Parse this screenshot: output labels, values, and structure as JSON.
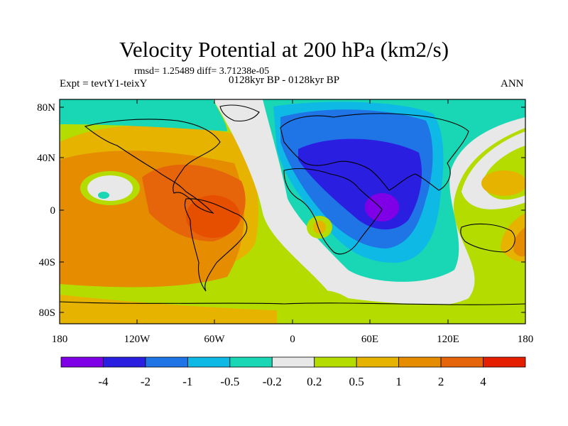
{
  "title": "Velocity Potential at 200 hPa (km2/s)",
  "stats": "rmsd= 1.25489 diff= 3.71238e-05",
  "expt": "Expt = tevtY1-teixY",
  "period": "0128kyr BP - 0128kyr BP",
  "season": "ANN",
  "map": {
    "lat_labels": [
      "80N",
      "40N",
      "0",
      "40S",
      "80S"
    ],
    "lon_labels": [
      "180",
      "120W",
      "60W",
      "0",
      "60E",
      "120E",
      "180"
    ]
  },
  "colorbar": {
    "labels": [
      "-4",
      "-2",
      "-1",
      "-0.5",
      "-0.2",
      "0.2",
      "0.5",
      "1",
      "2",
      "4"
    ],
    "colors": [
      "#7f00e6",
      "#2a1ee0",
      "#1f74e6",
      "#0fb9e6",
      "#19d6b4",
      "#e8e8e8",
      "#b4dc00",
      "#e6b400",
      "#e68c00",
      "#e6640a",
      "#e61e00"
    ]
  },
  "colors": {
    "ocean_bg": "#b4dc00",
    "positive_center": "#e64e00",
    "negative_center": "#7f00e6"
  }
}
